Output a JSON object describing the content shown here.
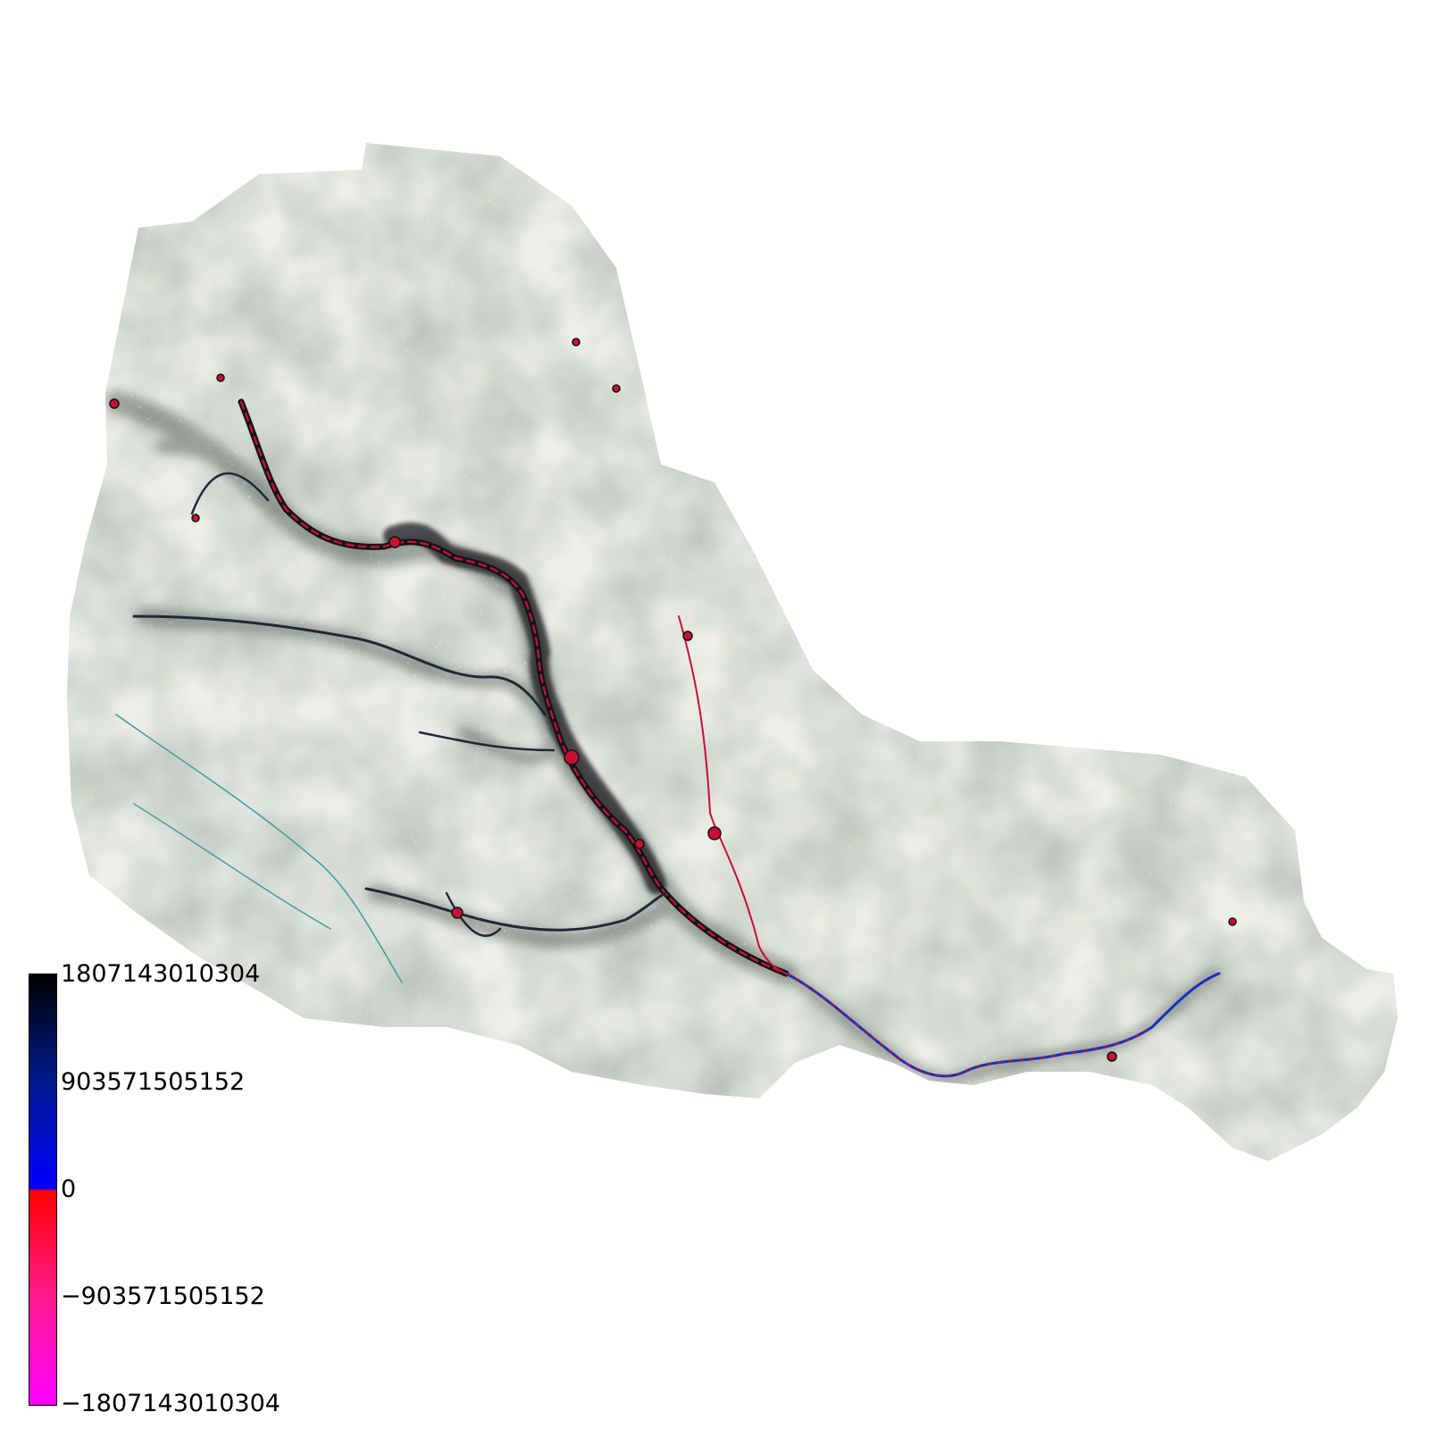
{
  "legend": {
    "ticks": [
      "1807143010304",
      "903571505152",
      "0",
      "−903571505152",
      "−1807143010304"
    ],
    "colors": {
      "max": "#000000",
      "upper_mid": "#001a8c",
      "zero_pos": "#0000ff",
      "zero_neg": "#ff0000",
      "lower_mid": "#ff1a8c",
      "min": "#ff00ff"
    }
  },
  "map": {
    "palette": {
      "background": "#ffffff",
      "terrain_light": "#e8ebe6",
      "terrain_shade": "#9aa39a",
      "speckle_yellow": "#e7f24a",
      "speckle_cyan": "#7fe0e8",
      "channel_dark": "#101418",
      "channel_red": "#c8102e",
      "channel_blue": "#1530c0"
    }
  }
}
